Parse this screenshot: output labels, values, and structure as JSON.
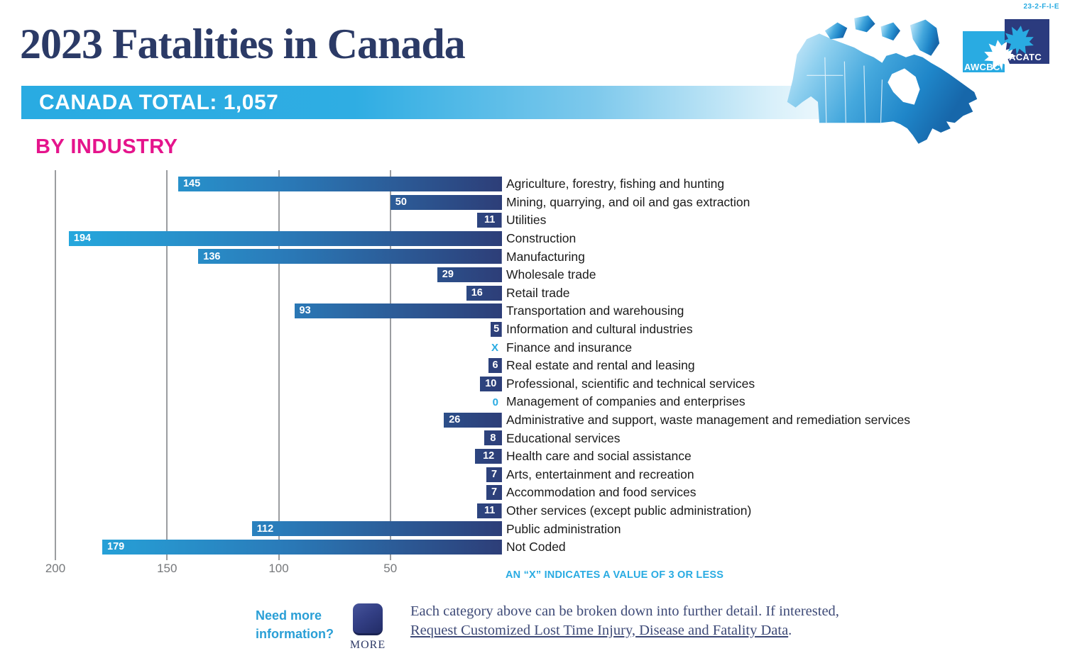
{
  "page": {
    "code": "23-2-F-I-E"
  },
  "header": {
    "title": "2023 Fatalities in Canada",
    "banner": "CANADA TOTAL: 1,057",
    "section": "BY INDUSTRY"
  },
  "logo": {
    "awcbc": "AWCBC",
    "acatc": "ACATC"
  },
  "chart_data": {
    "type": "bar",
    "orientation": "horizontal_right_aligned",
    "categories": [
      "Agriculture, forestry, fishing and hunting",
      "Mining, quarrying, and oil and gas extraction",
      "Utilities",
      "Construction",
      "Manufacturing",
      "Wholesale trade",
      "Retail trade",
      "Transportation and warehousing",
      "Information and cultural industries",
      "Finance and insurance",
      "Real estate and rental and leasing",
      "Professional, scientific and technical services",
      "Management of companies and enterprises",
      "Administrative and support, waste management and remediation services",
      "Educational services",
      "Health care and social assistance",
      "Arts, entertainment and recreation",
      "Accommodation and food services",
      "Other services (except public administration)",
      "Public administration",
      "Not Coded"
    ],
    "values": [
      145,
      50,
      11,
      194,
      136,
      29,
      16,
      93,
      5,
      null,
      6,
      10,
      0,
      26,
      8,
      12,
      7,
      7,
      11,
      112,
      179
    ],
    "value_labels": [
      "145",
      "50",
      "11",
      "194",
      "136",
      "29",
      "16",
      "93",
      "5",
      "X",
      "6",
      "10",
      "0",
      "26",
      "8",
      "12",
      "7",
      "7",
      "11",
      "112",
      "179"
    ],
    "axis_ticks": [
      "200",
      "150",
      "100",
      "50"
    ],
    "xlim": [
      0,
      200
    ],
    "grid": true,
    "note": "AN “X” INDICATES A VALUE OF 3 OR LESS",
    "bar_gradient": {
      "light": "#25aadf",
      "dark": "#2d3e78"
    },
    "suppressed_color": "#29abe2",
    "canada_total": "1,057"
  },
  "footer": {
    "prompt_line1": "Need more",
    "prompt_line2": "information?",
    "more_button": "MORE",
    "text_line1": "Each category above can be broken down into further detail. If interested,",
    "link_text": "Request Customized Lost Time Injury, Disease and Fatality Data",
    "text_after_link": "."
  },
  "colors": {
    "accent_cyan": "#29abe2",
    "magenta": "#e5148c",
    "navy_text": "#2b3a66",
    "bar_dark": "#2d3e78",
    "bar_light": "#25aadf",
    "grid_gray": "#9b9da0"
  }
}
